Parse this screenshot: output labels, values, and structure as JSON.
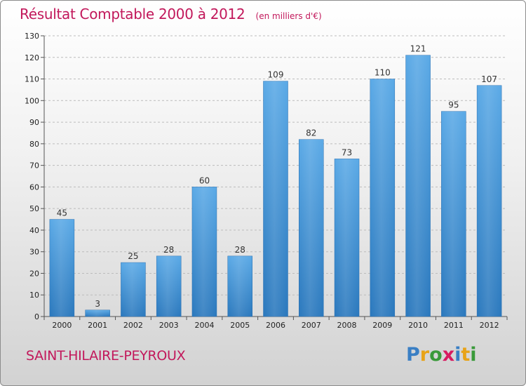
{
  "header": {
    "title": "Résultat Comptable 2000 à 2012",
    "subtitle": "(en milliers d'€)"
  },
  "footer": {
    "commune": "SAINT-HILAIRE-PEYROUX",
    "logo_letters": [
      {
        "ch": "P",
        "color": "#3a7fc4"
      },
      {
        "ch": "r",
        "color": "#e8a317"
      },
      {
        "ch": "o",
        "color": "#3a9a3a"
      },
      {
        "ch": "x",
        "color": "#d81b60"
      },
      {
        "ch": "i",
        "color": "#3a7fc4"
      },
      {
        "ch": "t",
        "color": "#e8a317"
      },
      {
        "ch": "i",
        "color": "#3a9a3a"
      }
    ]
  },
  "chart_data": {
    "type": "bar",
    "title": "Résultat Comptable 2000 à 2012",
    "subtitle": "(en milliers d'€)",
    "categories": [
      "2000",
      "2001",
      "2002",
      "2003",
      "2004",
      "2005",
      "2006",
      "2007",
      "2008",
      "2009",
      "2010",
      "2011",
      "2012"
    ],
    "values": [
      45,
      3,
      25,
      28,
      60,
      28,
      109,
      82,
      73,
      110,
      121,
      95,
      107
    ],
    "ylim": [
      0,
      130
    ],
    "yticks": [
      0,
      10,
      20,
      30,
      40,
      50,
      60,
      70,
      80,
      90,
      100,
      110,
      120,
      130
    ],
    "grid": true,
    "bar_color": "#3c8fd6",
    "title_color": "#c2185b"
  }
}
